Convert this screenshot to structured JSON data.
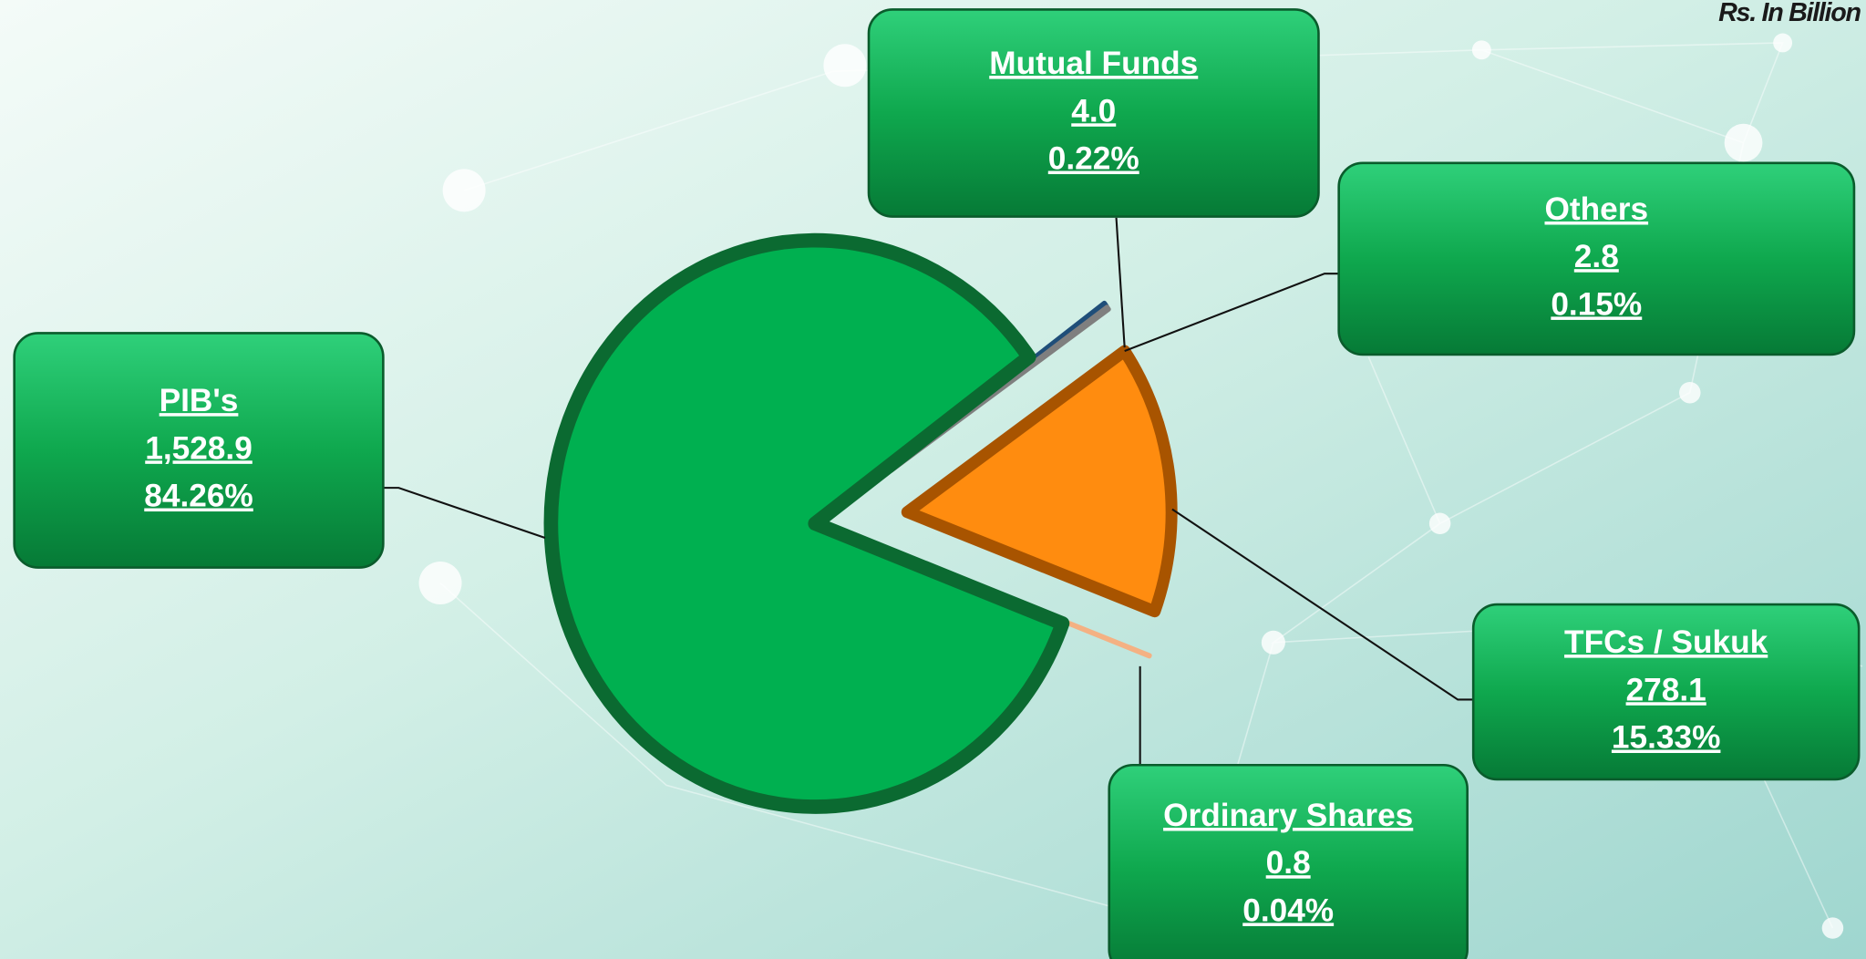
{
  "chart_data": {
    "type": "pie",
    "unit": "Rs. In Billion",
    "categories": [
      "Mutual Funds",
      "Others",
      "TFCs / Sukuk",
      "Ordinary Shares",
      "PIB's"
    ],
    "values": [
      0.22,
      0.15,
      15.33,
      0.04,
      84.26
    ],
    "value_labels": [
      "0.22%",
      "0.15%",
      "15.33%",
      "0.04%",
      "84.26%"
    ],
    "amounts": [
      "4.0",
      "2.8",
      "278.1",
      "0.8",
      "1,528.9"
    ],
    "colors": [
      "#1f4e79",
      "#7f7f7f",
      "#ff8c0f",
      "#f4b183",
      "#00b050"
    ]
  }
}
